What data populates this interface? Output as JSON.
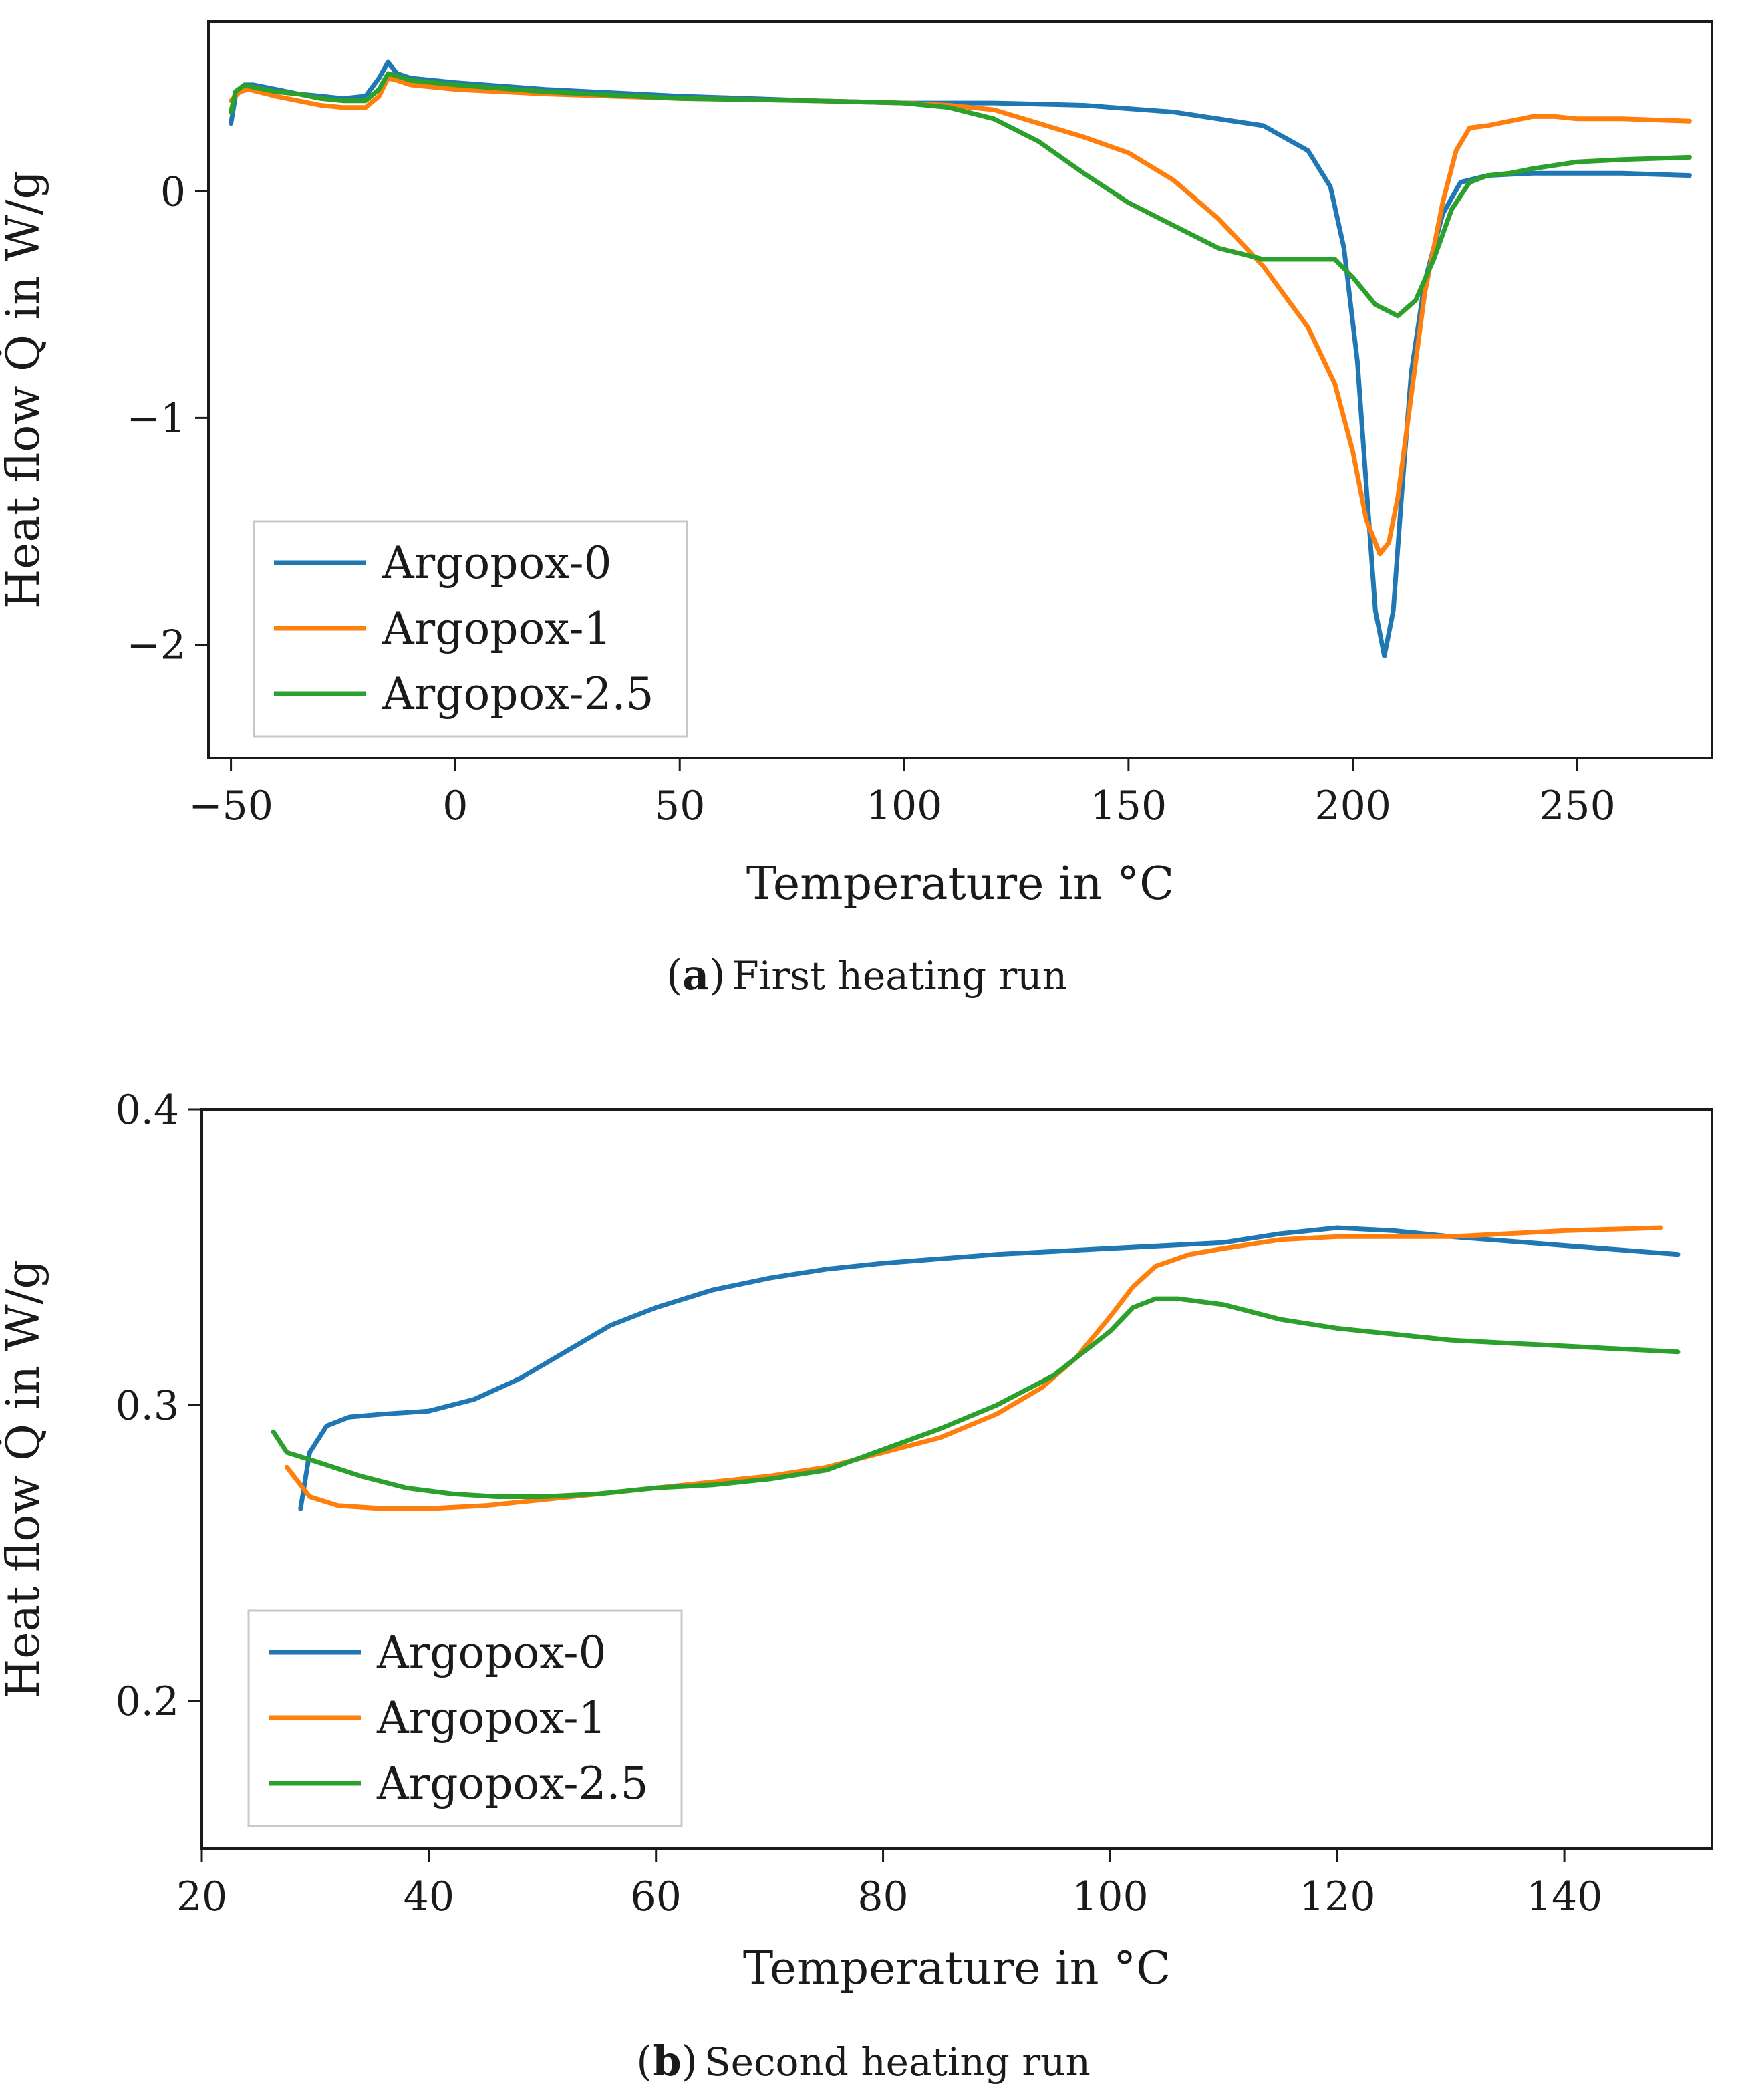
{
  "chart_data": [
    {
      "type": "line",
      "caption_letter": "a",
      "caption_text": "First heating run",
      "xlabel": "Temperature in °C",
      "ylabel": "Heat flow Q̇ in W/g",
      "xlim": [
        -55,
        280
      ],
      "ylim": [
        -2.5,
        0.75
      ],
      "xticks": [
        -50,
        0,
        50,
        100,
        150,
        200,
        250
      ],
      "xtick_labels": [
        "−50",
        "0",
        "50",
        "100",
        "150",
        "200",
        "250"
      ],
      "yticks": [
        -2,
        -1,
        0
      ],
      "ytick_labels": [
        "−2",
        "−1",
        "0"
      ],
      "legend_position": "bottom-left",
      "grid": false,
      "series": [
        {
          "name": "Argopox-0",
          "color": "#1f77b4",
          "points": [
            [
              -50,
              0.3
            ],
            [
              -49,
              0.42
            ],
            [
              -47,
              0.47
            ],
            [
              -45,
              0.47
            ],
            [
              -40,
              0.45
            ],
            [
              -35,
              0.43
            ],
            [
              -30,
              0.42
            ],
            [
              -25,
              0.41
            ],
            [
              -20,
              0.42
            ],
            [
              -17,
              0.5
            ],
            [
              -15,
              0.57
            ],
            [
              -13,
              0.52
            ],
            [
              -10,
              0.5
            ],
            [
              0,
              0.48
            ],
            [
              20,
              0.45
            ],
            [
              50,
              0.42
            ],
            [
              80,
              0.4
            ],
            [
              100,
              0.39
            ],
            [
              120,
              0.39
            ],
            [
              140,
              0.38
            ],
            [
              160,
              0.35
            ],
            [
              180,
              0.29
            ],
            [
              190,
              0.18
            ],
            [
              195,
              0.02
            ],
            [
              198,
              -0.25
            ],
            [
              201,
              -0.75
            ],
            [
              203,
              -1.3
            ],
            [
              205,
              -1.85
            ],
            [
              207,
              -2.05
            ],
            [
              209,
              -1.85
            ],
            [
              211,
              -1.3
            ],
            [
              213,
              -0.8
            ],
            [
              216,
              -0.4
            ],
            [
              220,
              -0.1
            ],
            [
              224,
              0.04
            ],
            [
              230,
              0.07
            ],
            [
              240,
              0.08
            ],
            [
              250,
              0.08
            ],
            [
              260,
              0.08
            ],
            [
              275,
              0.07
            ]
          ]
        },
        {
          "name": "Argopox-1",
          "color": "#ff7f0e",
          "points": [
            [
              -50,
              0.4
            ],
            [
              -48,
              0.44
            ],
            [
              -46,
              0.45
            ],
            [
              -40,
              0.42
            ],
            [
              -35,
              0.4
            ],
            [
              -30,
              0.38
            ],
            [
              -25,
              0.37
            ],
            [
              -20,
              0.37
            ],
            [
              -17,
              0.42
            ],
            [
              -15,
              0.5
            ],
            [
              -13,
              0.49
            ],
            [
              -10,
              0.47
            ],
            [
              0,
              0.45
            ],
            [
              20,
              0.43
            ],
            [
              50,
              0.41
            ],
            [
              80,
              0.4
            ],
            [
              100,
              0.39
            ],
            [
              110,
              0.38
            ],
            [
              120,
              0.36
            ],
            [
              130,
              0.3
            ],
            [
              140,
              0.24
            ],
            [
              150,
              0.17
            ],
            [
              160,
              0.05
            ],
            [
              170,
              -0.12
            ],
            [
              180,
              -0.33
            ],
            [
              190,
              -0.6
            ],
            [
              196,
              -0.85
            ],
            [
              200,
              -1.15
            ],
            [
              203,
              -1.45
            ],
            [
              206,
              -1.6
            ],
            [
              208,
              -1.55
            ],
            [
              210,
              -1.35
            ],
            [
              213,
              -0.9
            ],
            [
              216,
              -0.45
            ],
            [
              220,
              -0.05
            ],
            [
              223,
              0.18
            ],
            [
              226,
              0.28
            ],
            [
              230,
              0.29
            ],
            [
              235,
              0.31
            ],
            [
              240,
              0.33
            ],
            [
              245,
              0.33
            ],
            [
              250,
              0.32
            ],
            [
              260,
              0.32
            ],
            [
              275,
              0.31
            ]
          ]
        },
        {
          "name": "Argopox-2.5",
          "color": "#2ca02c",
          "points": [
            [
              -50,
              0.35
            ],
            [
              -49,
              0.44
            ],
            [
              -47,
              0.47
            ],
            [
              -45,
              0.46
            ],
            [
              -40,
              0.44
            ],
            [
              -35,
              0.43
            ],
            [
              -30,
              0.41
            ],
            [
              -25,
              0.4
            ],
            [
              -20,
              0.4
            ],
            [
              -17,
              0.45
            ],
            [
              -15,
              0.52
            ],
            [
              -13,
              0.51
            ],
            [
              -10,
              0.49
            ],
            [
              0,
              0.47
            ],
            [
              20,
              0.44
            ],
            [
              50,
              0.41
            ],
            [
              80,
              0.4
            ],
            [
              100,
              0.39
            ],
            [
              110,
              0.37
            ],
            [
              120,
              0.32
            ],
            [
              130,
              0.22
            ],
            [
              140,
              0.08
            ],
            [
              150,
              -0.05
            ],
            [
              160,
              -0.15
            ],
            [
              170,
              -0.25
            ],
            [
              180,
              -0.3
            ],
            [
              190,
              -0.3
            ],
            [
              196,
              -0.3
            ],
            [
              200,
              -0.38
            ],
            [
              205,
              -0.5
            ],
            [
              210,
              -0.55
            ],
            [
              214,
              -0.48
            ],
            [
              218,
              -0.3
            ],
            [
              222,
              -0.08
            ],
            [
              226,
              0.04
            ],
            [
              230,
              0.07
            ],
            [
              235,
              0.08
            ],
            [
              240,
              0.1
            ],
            [
              250,
              0.13
            ],
            [
              260,
              0.14
            ],
            [
              275,
              0.15
            ]
          ]
        }
      ]
    },
    {
      "type": "line",
      "caption_letter": "b",
      "caption_text": "Second heating run",
      "xlabel": "Temperature in °C",
      "ylabel": "Heat flow Q̇ in W/g",
      "xlim": [
        20,
        153
      ],
      "ylim": [
        0.15,
        0.4
      ],
      "xticks": [
        20,
        40,
        60,
        80,
        100,
        120,
        140
      ],
      "xtick_labels": [
        "20",
        "40",
        "60",
        "80",
        "100",
        "120",
        "140"
      ],
      "yticks": [
        0.2,
        0.3,
        0.4
      ],
      "ytick_labels": [
        "0.2",
        "0.3",
        "0.4"
      ],
      "legend_position": "bottom-left",
      "grid": false,
      "series": [
        {
          "name": "Argopox-0",
          "color": "#1f77b4",
          "points": [
            [
              28.7,
              0.265
            ],
            [
              29.5,
              0.284
            ],
            [
              31,
              0.293
            ],
            [
              33,
              0.296
            ],
            [
              36,
              0.297
            ],
            [
              40,
              0.298
            ],
            [
              44,
              0.302
            ],
            [
              48,
              0.309
            ],
            [
              52,
              0.318
            ],
            [
              56,
              0.327
            ],
            [
              60,
              0.333
            ],
            [
              65,
              0.339
            ],
            [
              70,
              0.343
            ],
            [
              75,
              0.346
            ],
            [
              80,
              0.348
            ],
            [
              90,
              0.351
            ],
            [
              100,
              0.353
            ],
            [
              110,
              0.355
            ],
            [
              115,
              0.358
            ],
            [
              120,
              0.36
            ],
            [
              125,
              0.359
            ],
            [
              130,
              0.357
            ],
            [
              140,
              0.354
            ],
            [
              150,
              0.351
            ]
          ]
        },
        {
          "name": "Argopox-1",
          "color": "#ff7f0e",
          "points": [
            [
              27.5,
              0.279
            ],
            [
              29.5,
              0.269
            ],
            [
              32,
              0.266
            ],
            [
              36,
              0.265
            ],
            [
              40,
              0.265
            ],
            [
              45,
              0.266
            ],
            [
              50,
              0.268
            ],
            [
              55,
              0.27
            ],
            [
              60,
              0.272
            ],
            [
              65,
              0.274
            ],
            [
              70,
              0.276
            ],
            [
              75,
              0.279
            ],
            [
              80,
              0.284
            ],
            [
              85,
              0.289
            ],
            [
              90,
              0.297
            ],
            [
              94,
              0.306
            ],
            [
              97,
              0.316
            ],
            [
              100,
              0.33
            ],
            [
              102,
              0.34
            ],
            [
              104,
              0.347
            ],
            [
              107,
              0.351
            ],
            [
              110,
              0.353
            ],
            [
              115,
              0.356
            ],
            [
              120,
              0.357
            ],
            [
              130,
              0.357
            ],
            [
              140,
              0.359
            ],
            [
              148.5,
              0.36
            ]
          ]
        },
        {
          "name": "Argopox-2.5",
          "color": "#2ca02c",
          "points": [
            [
              26.3,
              0.291
            ],
            [
              27.5,
              0.284
            ],
            [
              30,
              0.281
            ],
            [
              34,
              0.276
            ],
            [
              38,
              0.272
            ],
            [
              42,
              0.27
            ],
            [
              46,
              0.269
            ],
            [
              50,
              0.269
            ],
            [
              55,
              0.27
            ],
            [
              60,
              0.272
            ],
            [
              65,
              0.273
            ],
            [
              70,
              0.275
            ],
            [
              75,
              0.278
            ],
            [
              80,
              0.285
            ],
            [
              85,
              0.292
            ],
            [
              90,
              0.3
            ],
            [
              95,
              0.31
            ],
            [
              100,
              0.325
            ],
            [
              102,
              0.333
            ],
            [
              104,
              0.336
            ],
            [
              106,
              0.336
            ],
            [
              110,
              0.334
            ],
            [
              115,
              0.329
            ],
            [
              120,
              0.326
            ],
            [
              130,
              0.322
            ],
            [
              140,
              0.32
            ],
            [
              150,
              0.318
            ]
          ]
        }
      ]
    }
  ]
}
